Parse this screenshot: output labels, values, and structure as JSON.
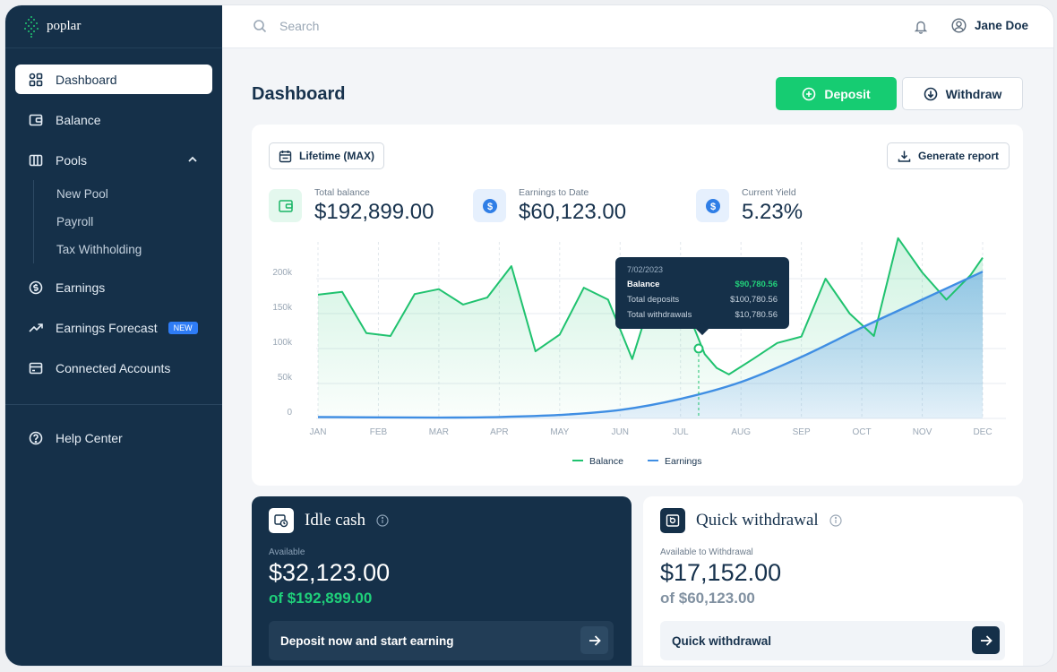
{
  "brand": {
    "name": "poplar"
  },
  "sidebar": {
    "items": [
      {
        "label": "Dashboard",
        "icon": "dashboard-icon"
      },
      {
        "label": "Balance",
        "icon": "wallet-icon"
      },
      {
        "label": "Pools",
        "icon": "pools-icon"
      },
      {
        "label": "Earnings",
        "icon": "dollar-icon"
      },
      {
        "label": "Earnings Forecast",
        "icon": "trend-icon",
        "badge": "NEW"
      },
      {
        "label": "Connected Accounts",
        "icon": "card-icon"
      }
    ],
    "pools_sub": [
      "New Pool",
      "Payroll",
      "Tax Withholding"
    ],
    "help": "Help Center"
  },
  "topbar": {
    "search_placeholder": "Search",
    "user_name": "Jane Doe"
  },
  "page": {
    "title": "Dashboard",
    "deposit_label": "Deposit",
    "withdraw_label": "Withdraw"
  },
  "chart_card": {
    "range_label": "Lifetime (MAX)",
    "report_label": "Generate report",
    "stats": [
      {
        "label": "Total balance",
        "value": "$192,899.00"
      },
      {
        "label": "Earnings to Date",
        "value": "$60,123.00"
      },
      {
        "label": "Current Yield",
        "value": "5.23%"
      }
    ],
    "tooltip": {
      "date": "7/02/2023",
      "balance_label": "Balance",
      "balance_value": "$90,780.56",
      "deposits_label": "Total deposits",
      "deposits_value": "$100,780.56",
      "withdrawals_label": "Total withdrawals",
      "withdrawals_value": "$10,780.56"
    }
  },
  "chart_data": {
    "type": "area",
    "categories": [
      "JAN",
      "FEB",
      "MAR",
      "APR",
      "MAY",
      "JUN",
      "JUL",
      "AUG",
      "SEP",
      "OCT",
      "NOV",
      "DEC"
    ],
    "y_ticks": [
      "0",
      "50k",
      "100k",
      "150k",
      "200k"
    ],
    "ylim": [
      0,
      250000
    ],
    "series": [
      {
        "name": "Balance",
        "color": "#20c26f",
        "x": [
          0,
          0.4,
          0.8,
          1.2,
          1.6,
          2.0,
          2.4,
          2.8,
          3.2,
          3.6,
          4.0,
          4.4,
          4.8,
          5.2,
          5.6,
          6.0,
          6.4,
          6.6,
          6.8,
          7.2,
          7.6,
          8.0,
          8.4,
          8.8,
          9.2,
          9.6,
          10.0,
          10.4,
          10.8,
          11.0
        ],
        "values": [
          177000,
          181000,
          122000,
          118000,
          178000,
          185000,
          163000,
          173000,
          218000,
          96000,
          120000,
          187000,
          170000,
          85000,
          195000,
          178000,
          92000,
          72000,
          63000,
          85000,
          108000,
          117000,
          200000,
          150000,
          118000,
          258000,
          209000,
          170000,
          205000,
          230000
        ]
      },
      {
        "name": "Earnings",
        "color": "#3f8ee3",
        "x": [
          0,
          1,
          2,
          3,
          4,
          5,
          6,
          7,
          8,
          9,
          10,
          11
        ],
        "values": [
          2000,
          1500,
          1200,
          2000,
          5000,
          12000,
          28000,
          52000,
          88000,
          130000,
          170000,
          210000
        ]
      }
    ],
    "highlight": {
      "x": 6.3,
      "value": 100000
    },
    "legend_position": "bottom"
  },
  "idle_cash": {
    "title": "Idle cash",
    "available_label": "Available",
    "value": "$32,123.00",
    "of": "of $192,899.00",
    "action": "Deposit now and start earning"
  },
  "quick_withdrawal": {
    "title": "Quick withdrawal",
    "available_label": "Available to Withdrawal",
    "value": "$17,152.00",
    "of": "of $60,123.00",
    "action": "Quick withdrawal"
  }
}
